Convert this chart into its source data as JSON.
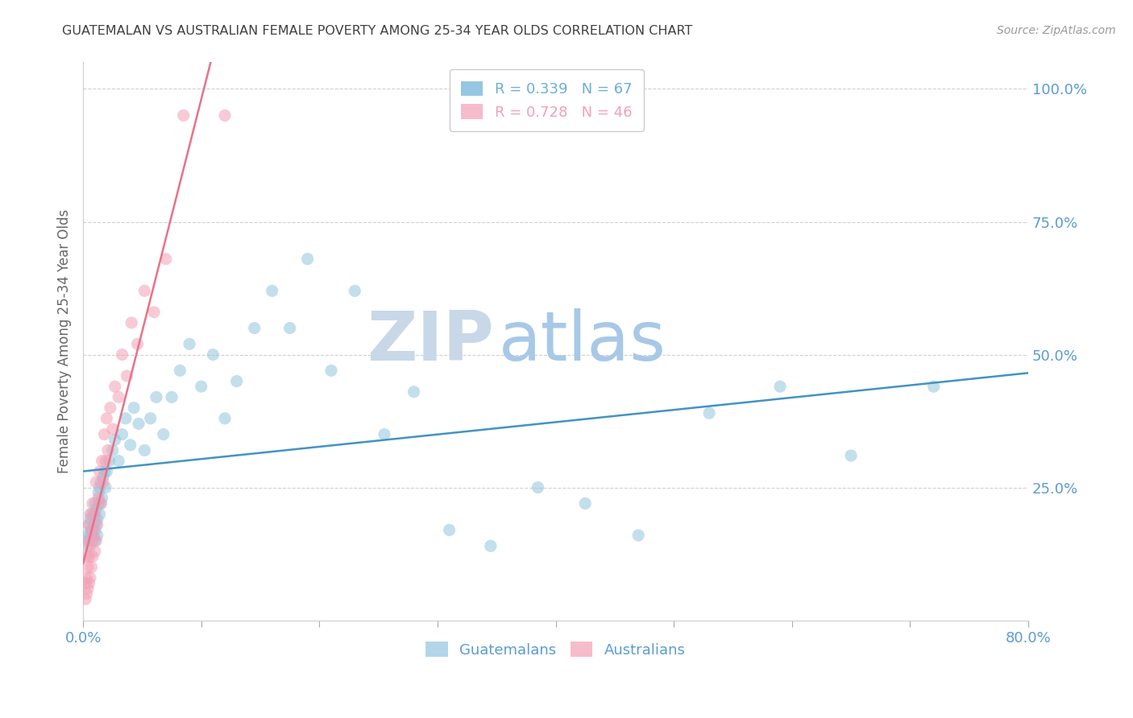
{
  "title": "GUATEMALAN VS AUSTRALIAN FEMALE POVERTY AMONG 25-34 YEAR OLDS CORRELATION CHART",
  "source": "Source: ZipAtlas.com",
  "ylabel": "Female Poverty Among 25-34 Year Olds",
  "right_ytick_labels": [
    "100.0%",
    "75.0%",
    "50.0%",
    "25.0%"
  ],
  "right_ytick_values": [
    1.0,
    0.75,
    0.5,
    0.25
  ],
  "xlim": [
    0.0,
    0.8
  ],
  "ylim": [
    0.0,
    1.05
  ],
  "legend_entries": [
    {
      "label": "R = 0.339   N = 67",
      "color": "#6baed6"
    },
    {
      "label": "R = 0.728   N = 46",
      "color": "#f4a0b5"
    }
  ],
  "guatemalans_color": "#92c5de",
  "australians_color": "#f4a0b5",
  "trend_guatemalans_color": "#4393c3",
  "trend_australians_color": "#e8718a",
  "guatemalans_x": [
    0.003,
    0.004,
    0.005,
    0.005,
    0.006,
    0.006,
    0.007,
    0.007,
    0.008,
    0.008,
    0.009,
    0.009,
    0.01,
    0.01,
    0.01,
    0.011,
    0.011,
    0.012,
    0.012,
    0.013,
    0.013,
    0.014,
    0.014,
    0.015,
    0.015,
    0.016,
    0.017,
    0.018,
    0.019,
    0.02,
    0.022,
    0.025,
    0.027,
    0.03,
    0.033,
    0.036,
    0.04,
    0.043,
    0.047,
    0.052,
    0.057,
    0.062,
    0.068,
    0.075,
    0.082,
    0.09,
    0.1,
    0.11,
    0.12,
    0.13,
    0.145,
    0.16,
    0.175,
    0.19,
    0.21,
    0.23,
    0.255,
    0.28,
    0.31,
    0.345,
    0.385,
    0.425,
    0.47,
    0.53,
    0.59,
    0.65,
    0.72
  ],
  "guatemalans_y": [
    0.16,
    0.14,
    0.15,
    0.18,
    0.16,
    0.19,
    0.17,
    0.2,
    0.15,
    0.17,
    0.18,
    0.2,
    0.15,
    0.17,
    0.22,
    0.18,
    0.21,
    0.16,
    0.19,
    0.22,
    0.24,
    0.2,
    0.25,
    0.22,
    0.26,
    0.23,
    0.27,
    0.28,
    0.25,
    0.28,
    0.3,
    0.32,
    0.34,
    0.3,
    0.35,
    0.38,
    0.33,
    0.4,
    0.37,
    0.32,
    0.38,
    0.42,
    0.35,
    0.42,
    0.47,
    0.52,
    0.44,
    0.5,
    0.38,
    0.45,
    0.55,
    0.62,
    0.55,
    0.68,
    0.47,
    0.62,
    0.35,
    0.43,
    0.17,
    0.14,
    0.25,
    0.22,
    0.16,
    0.39,
    0.44,
    0.31,
    0.44
  ],
  "australians_x": [
    0.002,
    0.002,
    0.003,
    0.003,
    0.003,
    0.004,
    0.004,
    0.004,
    0.005,
    0.005,
    0.005,
    0.006,
    0.006,
    0.006,
    0.007,
    0.007,
    0.008,
    0.008,
    0.009,
    0.01,
    0.01,
    0.011,
    0.011,
    0.012,
    0.013,
    0.014,
    0.015,
    0.016,
    0.017,
    0.018,
    0.019,
    0.02,
    0.021,
    0.023,
    0.025,
    0.027,
    0.03,
    0.033,
    0.037,
    0.041,
    0.046,
    0.052,
    0.06,
    0.07,
    0.085,
    0.12
  ],
  "australians_y": [
    0.04,
    0.07,
    0.05,
    0.08,
    0.12,
    0.06,
    0.1,
    0.15,
    0.07,
    0.12,
    0.18,
    0.08,
    0.14,
    0.2,
    0.1,
    0.17,
    0.12,
    0.22,
    0.16,
    0.13,
    0.2,
    0.15,
    0.26,
    0.18,
    0.23,
    0.28,
    0.22,
    0.3,
    0.26,
    0.35,
    0.3,
    0.38,
    0.32,
    0.4,
    0.36,
    0.44,
    0.42,
    0.5,
    0.46,
    0.56,
    0.52,
    0.62,
    0.58,
    0.68,
    0.95,
    0.95
  ],
  "watermark_zip": "ZIP",
  "watermark_atlas": "atlas",
  "watermark_zip_color": "#c8d8e8",
  "watermark_atlas_color": "#a8c8e8",
  "background_color": "#ffffff",
  "grid_color": "#d0d0d0",
  "title_color": "#404040",
  "axis_label_color": "#5b9bd5",
  "scatter_alpha": 0.55,
  "scatter_size": 120,
  "trend_linewidth": 1.8
}
